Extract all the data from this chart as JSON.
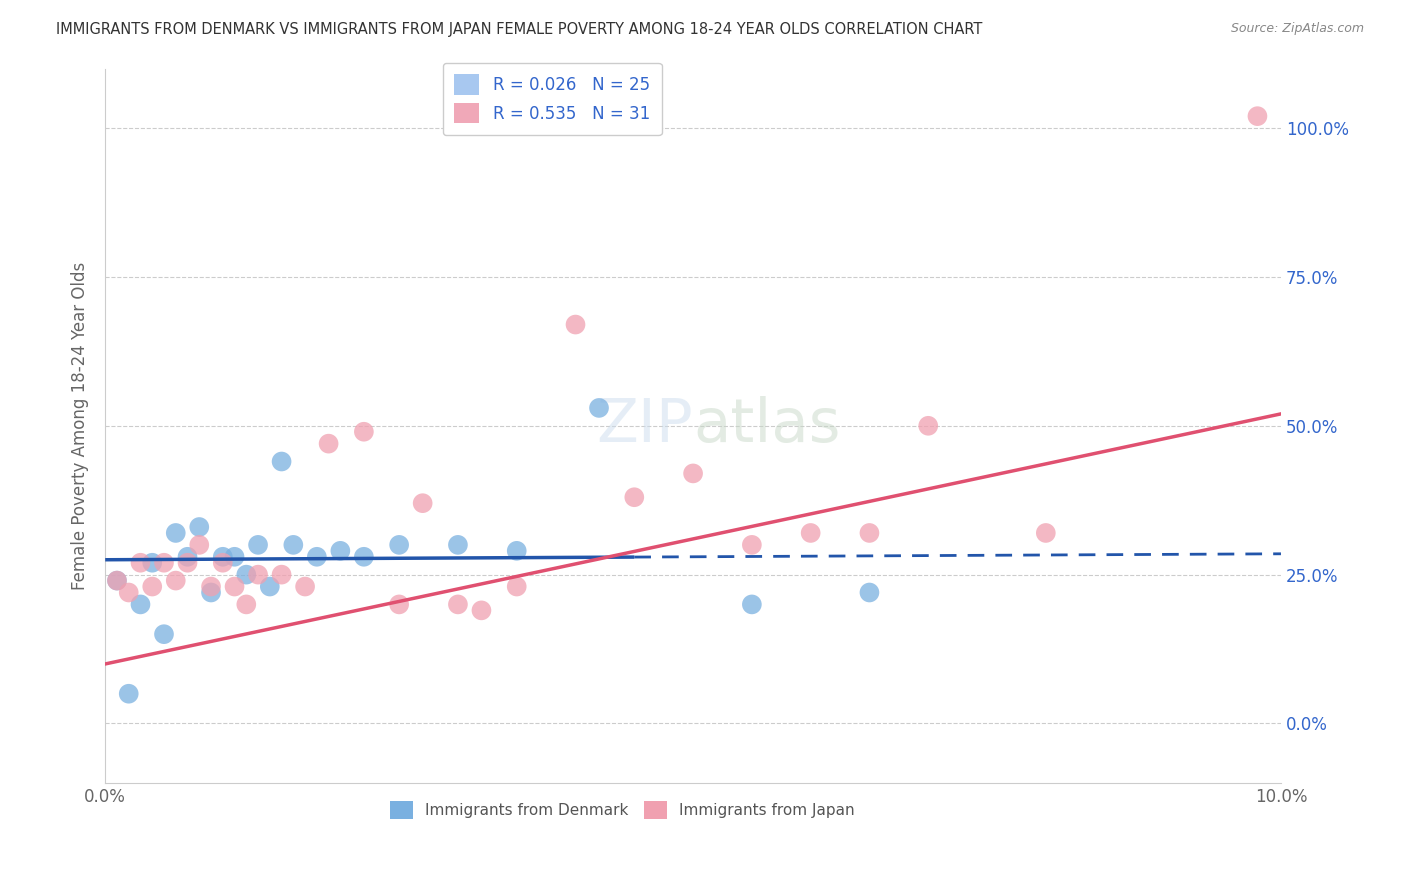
{
  "title": "IMMIGRANTS FROM DENMARK VS IMMIGRANTS FROM JAPAN FEMALE POVERTY AMONG 18-24 YEAR OLDS CORRELATION CHART",
  "source": "Source: ZipAtlas.com",
  "ylabel": "Female Poverty Among 18-24 Year Olds",
  "xlim": [
    0.0,
    0.1
  ],
  "ylim": [
    -0.1,
    1.1
  ],
  "yticks": [
    0.0,
    0.25,
    0.5,
    0.75,
    1.0
  ],
  "ytick_labels": [
    "0.0%",
    "25.0%",
    "50.0%",
    "75.0%",
    "100.0%"
  ],
  "legend_entries": [
    {
      "label": "R = 0.026   N = 25",
      "color": "#a8c8f0"
    },
    {
      "label": "R = 0.535   N = 31",
      "color": "#f0a8b8"
    }
  ],
  "denmark_color": "#7ab0e0",
  "japan_color": "#f0a0b0",
  "denmark_line_color": "#2255aa",
  "japan_line_color": "#e05070",
  "axis_color": "#3366cc",
  "background_color": "#ffffff",
  "denmark_x": [
    0.001,
    0.002,
    0.003,
    0.004,
    0.005,
    0.006,
    0.007,
    0.008,
    0.009,
    0.01,
    0.011,
    0.012,
    0.013,
    0.014,
    0.015,
    0.016,
    0.018,
    0.02,
    0.022,
    0.025,
    0.03,
    0.035,
    0.042,
    0.055,
    0.065
  ],
  "denmark_y": [
    0.24,
    0.05,
    0.2,
    0.27,
    0.15,
    0.32,
    0.28,
    0.33,
    0.22,
    0.28,
    0.28,
    0.25,
    0.3,
    0.23,
    0.44,
    0.3,
    0.28,
    0.29,
    0.28,
    0.3,
    0.3,
    0.29,
    0.53,
    0.2,
    0.22
  ],
  "japan_x": [
    0.001,
    0.002,
    0.003,
    0.004,
    0.005,
    0.006,
    0.007,
    0.008,
    0.009,
    0.01,
    0.011,
    0.012,
    0.013,
    0.015,
    0.017,
    0.019,
    0.022,
    0.025,
    0.027,
    0.03,
    0.032,
    0.035,
    0.04,
    0.045,
    0.05,
    0.055,
    0.06,
    0.065,
    0.07,
    0.08,
    0.098
  ],
  "japan_y": [
    0.24,
    0.22,
    0.27,
    0.23,
    0.27,
    0.24,
    0.27,
    0.3,
    0.23,
    0.27,
    0.23,
    0.2,
    0.25,
    0.25,
    0.23,
    0.47,
    0.49,
    0.2,
    0.37,
    0.2,
    0.19,
    0.23,
    0.67,
    0.38,
    0.42,
    0.3,
    0.32,
    0.32,
    0.5,
    0.32,
    1.02
  ],
  "denmark_line_x": [
    0.0,
    0.1
  ],
  "denmark_line_y": [
    0.275,
    0.285
  ],
  "japan_line_x": [
    0.0,
    0.1
  ],
  "japan_line_y": [
    0.1,
    0.52
  ]
}
